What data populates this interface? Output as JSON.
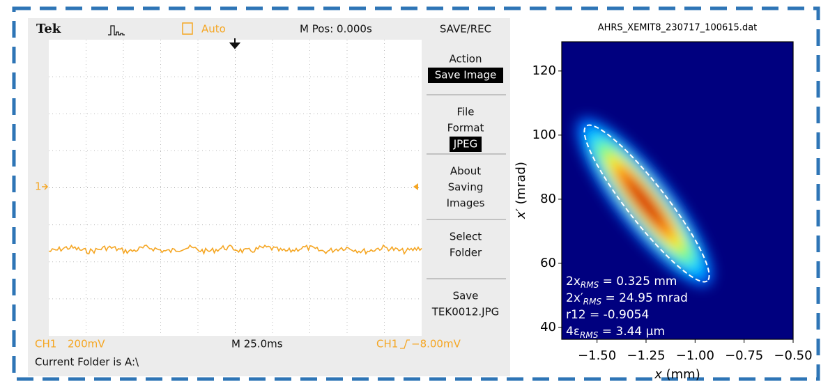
{
  "scope": {
    "header": {
      "brand": "Tek",
      "trigger_mode": "Auto",
      "position": "M Pos: 0.000s",
      "menu_title": "SAVE/REC"
    },
    "menu": [
      {
        "lines": [
          "Action"
        ],
        "highlight": "Save Image"
      },
      {
        "lines": [
          "File",
          "Format"
        ],
        "highlight": "JPEG"
      },
      {
        "lines": [
          "About",
          "Saving",
          "Images"
        ]
      },
      {
        "lines": [
          "Select",
          "Folder"
        ]
      },
      {
        "lines": [
          "Save",
          "TEK0012.JPG"
        ]
      }
    ],
    "channel_marker": "1",
    "footer": {
      "channel": "CH1",
      "scale": "200mV",
      "timebase": "M 25.0ms",
      "trigger_channel": "CH1",
      "trigger_level": "−8.00mV",
      "folder": "Current Folder is A:\\"
    }
  },
  "chart_data": {
    "type": "heatmap",
    "title": "AHRS_XEMIT8_230717_100615.dat",
    "x_label": {
      "var": "x",
      "unit": " (mm)"
    },
    "y_label": {
      "var": "x′",
      "unit": " (mrad)"
    },
    "xlim": [
      -1.68,
      -0.5
    ],
    "xticks": [
      {
        "value": -1.5,
        "label": "−1.50"
      },
      {
        "value": -1.25,
        "label": "−1.25"
      },
      {
        "value": -1.0,
        "label": "−1.00"
      },
      {
        "value": -0.75,
        "label": "−0.75"
      },
      {
        "value": -0.5,
        "label": "−0.50"
      }
    ],
    "ylim": [
      36.3,
      129.1
    ],
    "yticks": [
      40,
      60,
      80,
      100,
      120
    ],
    "annotations": [
      {
        "lead": "2x",
        "sub": "RMS",
        "rest": " = 0.325 mm"
      },
      {
        "lead": "2x′",
        "sub": "RMS",
        "rest": " = 24.95 mrad"
      },
      {
        "lead": "r12 = -0.9054"
      },
      {
        "lead": "4ε",
        "sub": "RMS",
        "rest": " = 3.44 μm"
      }
    ]
  }
}
